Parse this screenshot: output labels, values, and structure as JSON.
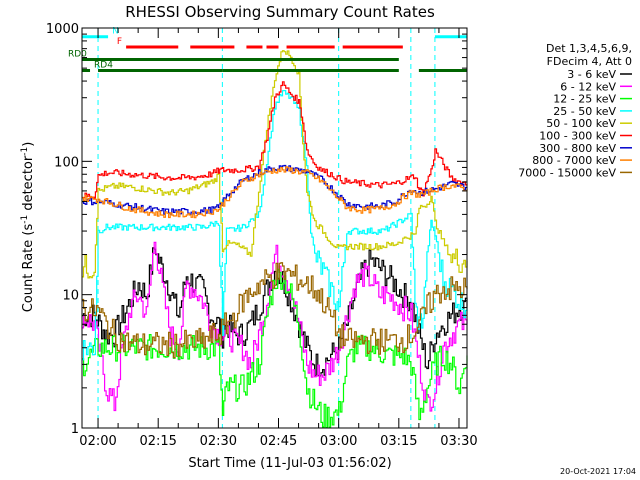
{
  "chart_data": {
    "type": "line",
    "title": "RHESSI Observing Summary Count Rates",
    "xlabel": "Start Time (11-Jul-03 01:56:02)",
    "ylabel": "Count Rate (s",
    "ylabel_sup": "-1",
    "ylabel_tail": " detector",
    "ylabel_end": ")",
    "yscale": "log",
    "xlim": [
      0,
      96
    ],
    "ylim": [
      1,
      1000
    ],
    "x_ticks": [
      {
        "value": 4,
        "label": "02:00"
      },
      {
        "value": 19,
        "label": "02:15"
      },
      {
        "value": 34,
        "label": "02:30"
      },
      {
        "value": 49,
        "label": "02:45"
      },
      {
        "value": 64,
        "label": "03:00"
      },
      {
        "value": 79,
        "label": "03:15"
      },
      {
        "value": 94,
        "label": "03:30"
      }
    ],
    "y_ticks": [
      {
        "value": 1,
        "label": "1"
      },
      {
        "value": 10,
        "label": "10"
      },
      {
        "value": 100,
        "label": "100"
      },
      {
        "value": 1000,
        "label": "1000"
      }
    ],
    "legend": {
      "position": "right",
      "header": [
        "Det 1,3,4,5,6,9,",
        "FDecim 4, Att 0"
      ]
    },
    "series": [
      {
        "name": "3 - 6 keV",
        "color": "#000000",
        "x": [
          0,
          3,
          6,
          8,
          12,
          14,
          16,
          18,
          21,
          24,
          26,
          28,
          30,
          32,
          34,
          35,
          36,
          38,
          40,
          42,
          44,
          46,
          48,
          50,
          52,
          54,
          56,
          58,
          60,
          62,
          64,
          66,
          68,
          70,
          72,
          74,
          76,
          78,
          80,
          82,
          84,
          86,
          88,
          90,
          92,
          94,
          96
        ],
        "y": [
          7,
          7,
          5,
          5,
          9,
          12,
          10,
          22,
          13,
          7,
          14,
          12,
          11,
          7,
          6,
          5,
          6,
          5,
          5,
          6,
          8,
          11,
          15,
          13,
          9,
          6,
          4,
          3,
          3,
          3.5,
          4,
          6,
          10,
          15,
          18,
          16,
          14,
          12,
          10,
          9,
          5,
          3,
          5,
          6,
          7,
          8,
          8
        ]
      },
      {
        "name": "6 - 12 keV",
        "color": "#ff00ff",
        "x": [
          0,
          3,
          6,
          8,
          10,
          12,
          14,
          16,
          18,
          20,
          22,
          24,
          26,
          28,
          30,
          32,
          34,
          36,
          40,
          42,
          44,
          46,
          48,
          50,
          52,
          54,
          56,
          58,
          60,
          62,
          64,
          66,
          68,
          70,
          72,
          74,
          76,
          78,
          80,
          82,
          84,
          86,
          88,
          90,
          92,
          94,
          96
        ],
        "y": [
          7,
          6,
          2,
          1.5,
          4,
          8,
          10,
          7,
          25,
          11,
          5,
          4,
          12,
          11,
          9,
          6,
          5,
          5,
          4,
          3,
          5,
          9,
          20,
          16,
          11,
          6,
          3,
          2.5,
          2.5,
          3,
          4,
          7,
          12,
          14,
          13,
          10,
          10,
          9,
          8,
          7,
          3,
          1.5,
          2,
          4,
          5,
          6,
          6
        ]
      },
      {
        "name": "12 - 25 keV",
        "color": "#00ff00",
        "x": [
          0,
          4,
          8,
          12,
          16,
          20,
          24,
          28,
          32,
          34,
          35,
          36,
          40,
          44,
          46,
          48,
          50,
          52,
          54,
          56,
          58,
          60,
          64,
          66,
          68,
          72,
          76,
          80,
          82,
          84,
          86,
          88,
          90,
          92,
          94,
          96
        ],
        "y": [
          3,
          4,
          4,
          4,
          4,
          4,
          4,
          4,
          4,
          4,
          1.2,
          2,
          2,
          3,
          7,
          13,
          14,
          10,
          6,
          2,
          1.5,
          1.2,
          1.3,
          3,
          4,
          4,
          3.5,
          3.5,
          3,
          1.2,
          2,
          3,
          3.5,
          3,
          2,
          3.5
        ]
      },
      {
        "name": "25 - 50 keV",
        "color": "#00ffff",
        "x": [
          0,
          3,
          4,
          6,
          10,
          15,
          20,
          25,
          30,
          34,
          35,
          36,
          40,
          44,
          46,
          48,
          50,
          52,
          54,
          56,
          57,
          58,
          60,
          62,
          64,
          66,
          70,
          75,
          79,
          82,
          83,
          84,
          85,
          86,
          87,
          88,
          90,
          92,
          94,
          96
        ],
        "y": [
          4,
          4,
          30,
          32,
          32,
          32,
          32,
          32,
          32,
          35,
          5,
          30,
          32,
          40,
          100,
          260,
          330,
          300,
          240,
          90,
          30,
          20,
          15,
          11,
          8,
          30,
          30,
          30,
          35,
          40,
          8,
          6,
          7,
          20,
          35,
          28,
          13,
          11,
          9,
          8
        ]
      },
      {
        "name": "50 - 100 keV",
        "color": "#cccc00",
        "x": [
          0,
          3,
          4,
          6,
          8,
          10,
          14,
          18,
          22,
          26,
          30,
          33,
          34,
          35,
          36,
          38,
          40,
          42,
          44,
          46,
          48,
          50,
          52,
          54,
          55,
          56,
          57,
          58,
          60,
          62,
          64,
          66,
          70,
          74,
          78,
          80,
          82,
          83,
          84,
          86,
          87,
          88,
          90,
          92,
          94,
          96
        ],
        "y": [
          16,
          16,
          60,
          63,
          65,
          65,
          63,
          60,
          58,
          60,
          66,
          72,
          80,
          22,
          24,
          24,
          22,
          20,
          60,
          180,
          420,
          700,
          610,
          450,
          140,
          60,
          45,
          35,
          30,
          25,
          22,
          23,
          23,
          23,
          24,
          26,
          28,
          28,
          45,
          48,
          55,
          35,
          25,
          19,
          18,
          18
        ]
      },
      {
        "name": "100 - 300 keV",
        "color": "#ff0000",
        "x": [
          0,
          3,
          4,
          6,
          8,
          12,
          16,
          20,
          24,
          28,
          30,
          32,
          34,
          35,
          36,
          38,
          40,
          42,
          44,
          46,
          48,
          50,
          52,
          54,
          55,
          56,
          58,
          60,
          62,
          64,
          66,
          70,
          74,
          78,
          80,
          82,
          83,
          84,
          85,
          86,
          87,
          88,
          90,
          92,
          94,
          96
        ],
        "y": [
          55,
          55,
          78,
          82,
          82,
          80,
          78,
          76,
          75,
          76,
          78,
          80,
          85,
          86,
          86,
          86,
          87,
          88,
          92,
          150,
          300,
          380,
          320,
          280,
          200,
          120,
          95,
          85,
          80,
          74,
          70,
          68,
          66,
          68,
          72,
          76,
          78,
          62,
          58,
          72,
          85,
          120,
          95,
          75,
          70,
          68
        ]
      },
      {
        "name": "300 - 800 keV",
        "color": "#0000cc",
        "x": [
          0,
          4,
          8,
          12,
          16,
          20,
          24,
          28,
          32,
          34,
          36,
          40,
          44,
          48,
          52,
          56,
          60,
          64,
          66,
          70,
          74,
          78,
          80,
          82,
          84,
          86,
          88,
          90,
          92,
          94,
          96
        ],
        "y": [
          50,
          50,
          48,
          46,
          44,
          42,
          42,
          42,
          43,
          45,
          55,
          72,
          82,
          90,
          88,
          84,
          72,
          55,
          48,
          46,
          46,
          50,
          56,
          62,
          58,
          60,
          62,
          65,
          68,
          66,
          64
        ]
      },
      {
        "name": "800 - 7000 keV",
        "color": "#ff8000",
        "x": [
          0,
          4,
          8,
          12,
          16,
          20,
          24,
          28,
          32,
          34,
          36,
          40,
          44,
          48,
          52,
          56,
          60,
          64,
          66,
          70,
          74,
          78,
          80,
          82,
          84,
          86,
          88,
          90,
          92,
          94,
          96
        ],
        "y": [
          53,
          52,
          48,
          44,
          42,
          40,
          40,
          40,
          42,
          44,
          52,
          70,
          80,
          86,
          86,
          82,
          70,
          52,
          45,
          43,
          44,
          48,
          54,
          58,
          56,
          58,
          62,
          64,
          66,
          64,
          62
        ]
      },
      {
        "name": "7000 - 15000 keV",
        "color": "#996600",
        "x": [
          0,
          2,
          4,
          6,
          8,
          10,
          14,
          18,
          22,
          26,
          30,
          33,
          34,
          36,
          38,
          40,
          44,
          48,
          50,
          52,
          54,
          56,
          58,
          60,
          62,
          64,
          66,
          70,
          74,
          78,
          80,
          82,
          84,
          86,
          88,
          90,
          92,
          94,
          96
        ],
        "y": [
          8,
          7.5,
          7.5,
          6,
          5,
          4.5,
          4.2,
          4.2,
          4.2,
          4.3,
          4.5,
          5,
          5,
          6,
          7,
          9,
          12,
          14,
          15,
          14,
          13,
          12,
          11,
          9,
          7,
          5,
          4.5,
          4.5,
          4.5,
          4.5,
          4.6,
          5,
          6,
          8,
          10,
          11,
          11,
          11,
          11
        ]
      }
    ],
    "state_flags": [
      {
        "label": "N",
        "color": "#00ffff",
        "y_value": 860,
        "segments": [
          [
            0,
            6.5
          ],
          [
            88,
            96
          ]
        ]
      },
      {
        "label": "F",
        "color": "#ff0000",
        "y_value": 720,
        "segments": [
          [
            11,
            24
          ],
          [
            27,
            38
          ],
          [
            41,
            45
          ],
          [
            46,
            49
          ],
          [
            51,
            63
          ],
          [
            65,
            80
          ]
        ]
      },
      {
        "label": "RD0",
        "color": "#006400",
        "y_value": 580,
        "segments": [
          [
            0,
            79
          ]
        ]
      },
      {
        "label": "RD4",
        "color": "#006400",
        "y_value": 480,
        "segments": [
          [
            0,
            2
          ],
          [
            4,
            35
          ],
          [
            35,
            79
          ],
          [
            84,
            96
          ]
        ]
      }
    ],
    "dashed_markers": [
      4,
      35,
      64,
      82,
      88,
      96
    ],
    "footer": "20-Oct-2021 17:04"
  }
}
